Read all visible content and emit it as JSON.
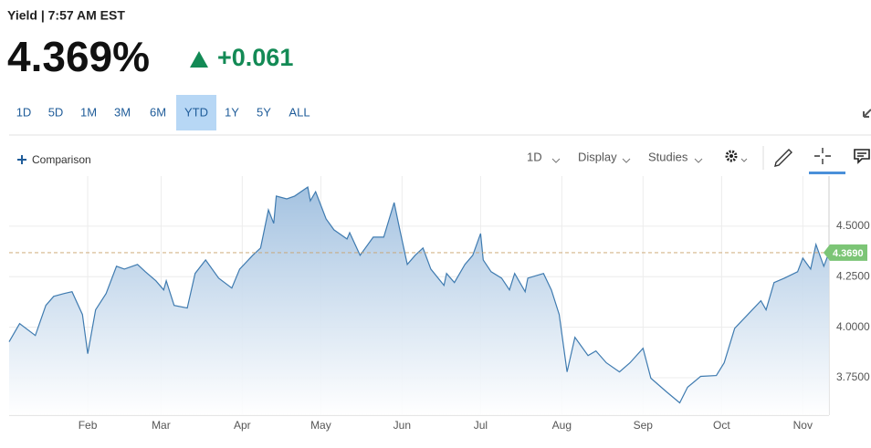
{
  "header": {
    "title": "Yield | 7:57 AM EST",
    "price": "4.369%",
    "change": "+0.061"
  },
  "ranges": [
    "1D",
    "5D",
    "1M",
    "3M",
    "6M",
    "YTD",
    "1Y",
    "5Y",
    "ALL"
  ],
  "active_range": "YTD",
  "toolbar": {
    "comparison": "Comparison",
    "interval": "1D",
    "display": "Display",
    "studies": "Studies"
  },
  "chart_data": {
    "type": "area",
    "x": [
      1,
      5,
      11,
      15,
      18,
      22,
      25,
      29,
      31,
      34,
      38,
      42,
      45,
      50,
      53,
      57,
      60,
      61,
      64,
      69,
      72,
      76,
      81,
      86,
      89,
      94,
      97,
      100,
      102,
      103,
      107,
      110,
      115,
      116,
      118,
      122,
      125,
      130,
      131,
      135,
      140,
      144,
      148,
      150,
      153,
      156,
      159,
      162,
      167,
      168,
      171,
      175,
      178,
      181,
      182,
      185,
      189,
      192,
      194,
      198,
      199,
      205,
      208,
      211,
      214,
      217,
      222,
      225,
      229,
      234,
      238,
      243,
      246,
      252,
      257,
      260,
      265,
      271,
      274,
      278,
      283,
      288,
      290,
      293,
      297,
      302,
      304,
      307,
      309,
      312,
      314
    ],
    "values": [
      3.928,
      4.018,
      3.959,
      4.108,
      4.153,
      4.167,
      4.176,
      4.063,
      3.869,
      4.086,
      4.167,
      4.302,
      4.288,
      4.311,
      4.275,
      4.23,
      4.185,
      4.23,
      4.108,
      4.095,
      4.266,
      4.333,
      4.243,
      4.194,
      4.288,
      4.356,
      4.392,
      4.581,
      4.514,
      4.649,
      4.635,
      4.649,
      4.694,
      4.626,
      4.671,
      4.536,
      4.482,
      4.437,
      4.468,
      4.356,
      4.446,
      4.446,
      4.617,
      4.491,
      4.311,
      4.356,
      4.392,
      4.288,
      4.207,
      4.266,
      4.221,
      4.311,
      4.356,
      4.464,
      4.333,
      4.275,
      4.243,
      4.185,
      4.266,
      4.176,
      4.243,
      4.266,
      4.185,
      4.063,
      3.779,
      3.95,
      3.86,
      3.883,
      3.824,
      3.779,
      3.824,
      3.896,
      3.748,
      3.68,
      3.626,
      3.703,
      3.757,
      3.761,
      3.824,
      3.995,
      4.063,
      4.131,
      4.086,
      4.221,
      4.243,
      4.275,
      4.342,
      4.288,
      4.41,
      4.302,
      4.369
    ],
    "color": "#3f7bb0",
    "xlim": [
      1,
      314
    ],
    "ylim": [
      3.565,
      4.748
    ],
    "xticks": [
      {
        "value": 31,
        "label": "Feb"
      },
      {
        "value": 59,
        "label": "Mar"
      },
      {
        "value": 90,
        "label": "Apr"
      },
      {
        "value": 120,
        "label": "May"
      },
      {
        "value": 151,
        "label": "Jun"
      },
      {
        "value": 181,
        "label": "Jul"
      },
      {
        "value": 212,
        "label": "Aug"
      },
      {
        "value": 243,
        "label": "Sep"
      },
      {
        "value": 273,
        "label": "Oct"
      },
      {
        "value": 304,
        "label": "Nov"
      }
    ],
    "yticks": [
      {
        "value": 3.75,
        "label": "3.7500"
      },
      {
        "value": 4.0,
        "label": "4.0000"
      },
      {
        "value": 4.25,
        "label": "4.2500"
      },
      {
        "value": 4.5,
        "label": "4.5000"
      }
    ],
    "last_value": {
      "value": 4.369,
      "label": "4.3690"
    },
    "grid": true
  }
}
